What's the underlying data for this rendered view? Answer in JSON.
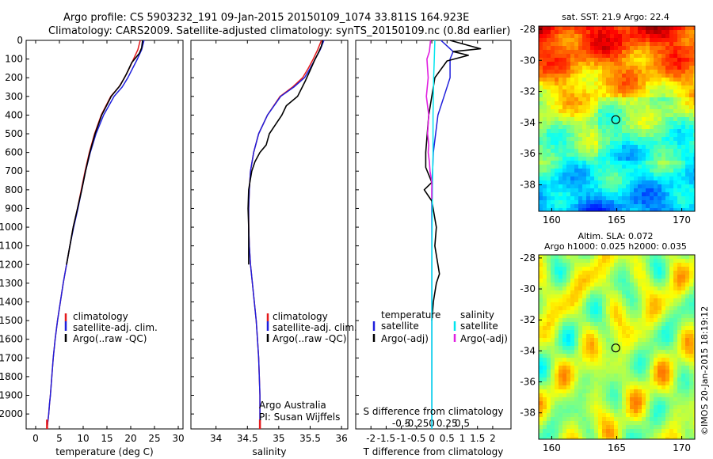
{
  "header": {
    "line1": "Argo profile: CS 5903232_191 09-Jan-2015 20150109_1074 33.811S 164.923E",
    "line2": "Climatology: CARS2009. Satellite-adjusted climatology: synTS_20150109.nc (0.8d earlier)"
  },
  "colors": {
    "climatology": "#e41a1c",
    "satellite": "#1f1fdc",
    "argo": "#000000",
    "sal_satellite": "#00e5ee",
    "sal_argo": "#e020e0"
  },
  "chart_data": [
    {
      "id": "temperature",
      "type": "line",
      "xlabel": "temperature (deg C)",
      "ylabel": "",
      "xlim": [
        -2,
        31
      ],
      "ylim": [
        2080,
        0
      ],
      "xticks": [
        0,
        5,
        10,
        15,
        20,
        25,
        30
      ],
      "yticks": [
        0,
        100,
        200,
        300,
        400,
        500,
        600,
        700,
        800,
        900,
        1000,
        1100,
        1200,
        1300,
        1400,
        1500,
        1600,
        1700,
        1800,
        1900,
        2000
      ],
      "legend": [
        "climatology",
        "satellite-adj. clim.",
        "Argo(..raw -QC)"
      ],
      "series": [
        {
          "name": "climatology",
          "x": [
            22.0,
            21.5,
            20.6,
            19.7,
            18.7,
            17.5,
            15.8,
            13.8,
            12.4,
            11.3,
            10.4,
            9.6,
            8.8,
            7.9,
            7.2,
            6.5,
            5.8,
            5.2,
            4.6,
            4.1,
            3.7,
            3.4,
            3.1,
            2.9,
            2.75,
            2.62,
            2.52,
            2.45,
            2.4
          ],
          "y": [
            0,
            50,
            100,
            150,
            200,
            250,
            300,
            400,
            500,
            600,
            700,
            800,
            900,
            1000,
            1100,
            1200,
            1300,
            1400,
            1500,
            1600,
            1700,
            1800,
            1900,
            1950,
            2000,
            2030,
            2050,
            2065,
            2080
          ]
        },
        {
          "name": "satellite-adj. clim.",
          "x": [
            22.8,
            22.3,
            21.4,
            20.4,
            19.4,
            18.2,
            16.5,
            14.3,
            12.7,
            11.5,
            10.5,
            9.7,
            8.9,
            8.0,
            7.2,
            6.5,
            5.8,
            5.2,
            4.6,
            4.1,
            3.7,
            3.4,
            3.1,
            2.9,
            2.75,
            2.62,
            2.52,
            2.45,
            2.4
          ],
          "y": [
            0,
            50,
            100,
            150,
            200,
            250,
            300,
            400,
            500,
            600,
            700,
            800,
            900,
            1000,
            1100,
            1200,
            1300,
            1400,
            1500,
            1600,
            1700,
            1800,
            1900,
            1950,
            2000,
            2030,
            2050,
            2065,
            2080
          ]
        },
        {
          "name": "Argo(..raw -QC)",
          "x": [
            22.5,
            22.3,
            21.8,
            20.2,
            19.1,
            17.8,
            15.9,
            13.9,
            12.5,
            11.4,
            10.5,
            9.7,
            8.8,
            7.9,
            7.2,
            6.5
          ],
          "y": [
            0,
            40,
            70,
            120,
            180,
            240,
            300,
            400,
            500,
            600,
            700,
            800,
            900,
            1000,
            1100,
            1200
          ]
        }
      ]
    },
    {
      "id": "salinity",
      "type": "line",
      "xlabel": "salinity",
      "ylabel": "",
      "xlim": [
        33.6,
        36.1
      ],
      "ylim": [
        2080,
        0
      ],
      "xticks": [
        34,
        34.5,
        35,
        35.5,
        36
      ],
      "legend": [
        "climatology",
        "satellite-adj. clim.",
        "Argo(..raw -QC)"
      ],
      "annotation": {
        "line1": "Argo Australia",
        "line2": "PI: Susan Wijffels"
      },
      "series": [
        {
          "name": "climatology",
          "x": [
            35.68,
            35.62,
            35.55,
            35.47,
            35.38,
            35.22,
            35.02,
            34.82,
            34.68,
            34.6,
            34.55,
            34.53,
            34.52,
            34.52,
            34.53,
            34.55,
            34.58,
            34.61,
            34.64,
            34.66,
            34.68,
            34.69,
            34.7,
            34.7
          ],
          "y": [
            0,
            50,
            100,
            150,
            200,
            250,
            300,
            400,
            500,
            600,
            700,
            800,
            900,
            1000,
            1100,
            1200,
            1300,
            1400,
            1500,
            1600,
            1700,
            1800,
            1900,
            2080
          ]
        },
        {
          "name": "satellite-adj. clim.",
          "x": [
            35.72,
            35.66,
            35.58,
            35.5,
            35.41,
            35.24,
            35.03,
            34.82,
            34.68,
            34.6,
            34.55,
            34.53,
            34.52,
            34.52,
            34.53,
            34.55,
            34.58,
            34.61,
            34.64,
            34.66,
            34.68,
            34.69,
            34.7,
            34.7
          ],
          "y": [
            0,
            50,
            100,
            150,
            200,
            250,
            300,
            400,
            500,
            600,
            700,
            800,
            900,
            1000,
            1100,
            1200,
            1300,
            1400,
            1500,
            1600,
            1700,
            1800,
            1900,
            2080
          ]
        },
        {
          "name": "Argo(..raw -QC)",
          "x": [
            35.7,
            35.68,
            35.64,
            35.58,
            35.5,
            35.42,
            35.3,
            35.12,
            35.05,
            34.95,
            34.85,
            34.8,
            34.7,
            34.62,
            34.57,
            34.54,
            34.52,
            34.51,
            34.52,
            34.52,
            34.52
          ],
          "y": [
            0,
            30,
            60,
            100,
            160,
            220,
            300,
            350,
            400,
            450,
            500,
            560,
            600,
            650,
            700,
            760,
            800,
            900,
            1000,
            1100,
            1200
          ]
        }
      ]
    },
    {
      "id": "difference",
      "type": "line",
      "xlabel": "T difference from climatology",
      "xlabel_top": "S difference from climatology",
      "xlim": [
        -2.5,
        2.6
      ],
      "ylim": [
        2080,
        0
      ],
      "xticks": [
        -2,
        -1.5,
        -1,
        -0.5,
        0,
        0.5,
        1,
        1.5,
        2
      ],
      "xtick_labels": [
        "-2",
        "-1.5",
        "-1",
        "-0.5",
        "0",
        "0.5",
        "1",
        "1.5",
        "2"
      ],
      "sxticks": [
        -0.5,
        -0.25,
        0,
        0.25,
        0.5
      ],
      "sxtick_labels": [
        "-0.5",
        "-0.25",
        "0",
        "0.25",
        "0.5"
      ],
      "legend_temp_title": "temperature",
      "legend_sal_title": "salinity",
      "legend": [
        "satellite",
        "Argo(-adj)",
        "satellite",
        "Argo(-adj)"
      ],
      "series": [
        {
          "name": "T satellite",
          "x": [
            0.3,
            0.5,
            0.7,
            0.6,
            0.6,
            0.4,
            0.2,
            0.05,
            0.0,
            0.0,
            0.0,
            0.0,
            0.0,
            0.0
          ],
          "y": [
            0,
            30,
            60,
            100,
            200,
            300,
            400,
            600,
            800,
            1000,
            1200,
            1500,
            1800,
            2080
          ]
        },
        {
          "name": "T Argo(-adj)",
          "x": [
            0.6,
            1.6,
            0.7,
            1.2,
            0.5,
            0.1,
            -0.1,
            -0.2,
            -0.2,
            0.0,
            -0.25,
            0.0,
            0.15,
            0.1,
            0.25,
            0.15,
            0.05,
            0.0
          ],
          "y": [
            0,
            45,
            60,
            80,
            110,
            200,
            400,
            600,
            680,
            760,
            800,
            860,
            1000,
            1100,
            1250,
            1300,
            1400,
            1500
          ]
        },
        {
          "name": "S satellite",
          "x": [
            0.05,
            0.04,
            0.03,
            0.02,
            0.02,
            0.01,
            0.0,
            0.0,
            0.0
          ],
          "y": [
            0,
            100,
            200,
            400,
            600,
            800,
            1200,
            1600,
            2080
          ]
        },
        {
          "name": "S Argo(-adj)",
          "x": [
            -0.02,
            -0.04,
            -0.08,
            -0.06,
            -0.09,
            -0.05,
            -0.07,
            -0.05,
            -0.06,
            -0.04,
            -0.03,
            0.0,
            0.0,
            0.0
          ],
          "y": [
            0,
            60,
            100,
            200,
            300,
            400,
            500,
            560,
            600,
            650,
            700,
            760,
            800,
            850
          ]
        }
      ]
    },
    {
      "id": "sst-map",
      "type": "heatmap",
      "title": "sat. SST: 21.9  Argo: 22.4",
      "xlim": [
        159,
        171
      ],
      "ylim": [
        -39.7,
        -27.8
      ],
      "xticks": [
        160,
        165,
        170
      ],
      "yticks": [
        -28,
        -30,
        -32,
        -34,
        -36,
        -38
      ],
      "marker": {
        "lon": 164.923,
        "lat": -33.811
      }
    },
    {
      "id": "sla-map",
      "type": "heatmap",
      "title": "Altim. SLA: 0.072",
      "subtitle": "Argo h1000: 0.025 h2000: 0.035",
      "xlim": [
        159,
        171
      ],
      "ylim": [
        -39.7,
        -27.8
      ],
      "xticks": [
        160,
        165,
        170
      ],
      "yticks": [
        -28,
        -30,
        -32,
        -34,
        -36,
        -38
      ],
      "marker": {
        "lon": 164.923,
        "lat": -33.811
      }
    }
  ],
  "credit": "©IMOS 20-Jan-2015 18:19:12"
}
